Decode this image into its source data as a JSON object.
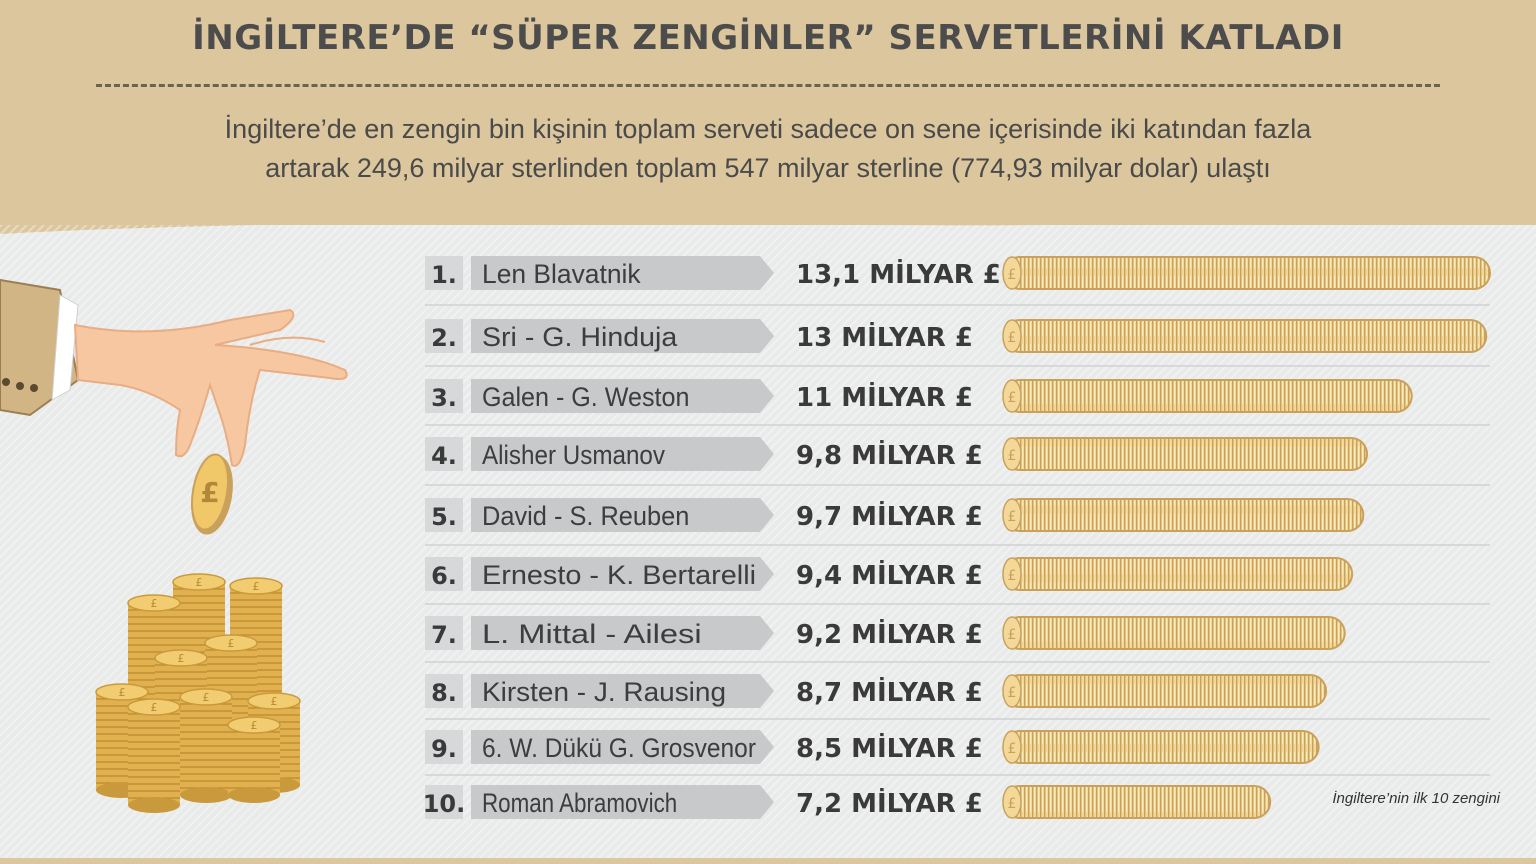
{
  "header": {
    "title": "İNGİLTERE’DE “SÜPER ZENGİNLER” SERVETLERİNİ KATLADI",
    "subtitle_line1": "İngiltere’de en zengin bin kişinin toplam serveti sadece on sene içerisinde iki katından fazla",
    "subtitle_line2": "artarak 249,6 milyar sterlinden toplam 547 milyar sterline (774,93 milyar dolar) ulaştı"
  },
  "footnote": "İngiltere’nin ilk 10 zengini",
  "chart_data": {
    "type": "bar",
    "orientation": "horizontal",
    "unit_suffix": "MİLYAR £",
    "ranks": [
      "1.",
      "2.",
      "3.",
      "4.",
      "5.",
      "6.",
      "7.",
      "8.",
      "9.",
      "10."
    ],
    "categories": [
      "Len Blavatnik",
      "Sri - G. Hinduja",
      "Galen - G. Weston",
      "Alisher Usmanov",
      "David - S. Reuben",
      "Ernesto - K. Bertarelli",
      "L. Mittal - Ailesi",
      "Kirsten - J. Rausing",
      "6. W. Dükü G. Grosvenor",
      "Roman Abramovich"
    ],
    "values": [
      13.1,
      13,
      11,
      9.8,
      9.7,
      9.4,
      9.2,
      8.7,
      8.5,
      7.2
    ],
    "value_labels": [
      "13,1 MİLYAR £",
      "13 MİLYAR £",
      "11 MİLYAR £",
      "9,8 MİLYAR £",
      "9,7 MİLYAR £",
      "9,4 MİLYAR £",
      "9,2 MİLYAR £",
      "8,7 MİLYAR £",
      "8,5 MİLYAR £",
      "7,2 MİLYAR £"
    ],
    "xlim": [
      0,
      13.1
    ],
    "grid": false,
    "bar_style": "stacked gold coins lying sideways"
  },
  "colors": {
    "header_bg": "#dcc69d",
    "coin_light": "#f3d89a",
    "coin_mid": "#e6c47a",
    "coin_dark": "#c9a15a",
    "name_tab": "#c7c9ca",
    "rank_box": "#d6d8d9",
    "text_dark": "#3a3a3a"
  },
  "icons": {
    "hand": "hand-dropping-coin-icon",
    "coin": "pound-coin-icon",
    "coin_stacks": "coin-stacks-icon"
  }
}
